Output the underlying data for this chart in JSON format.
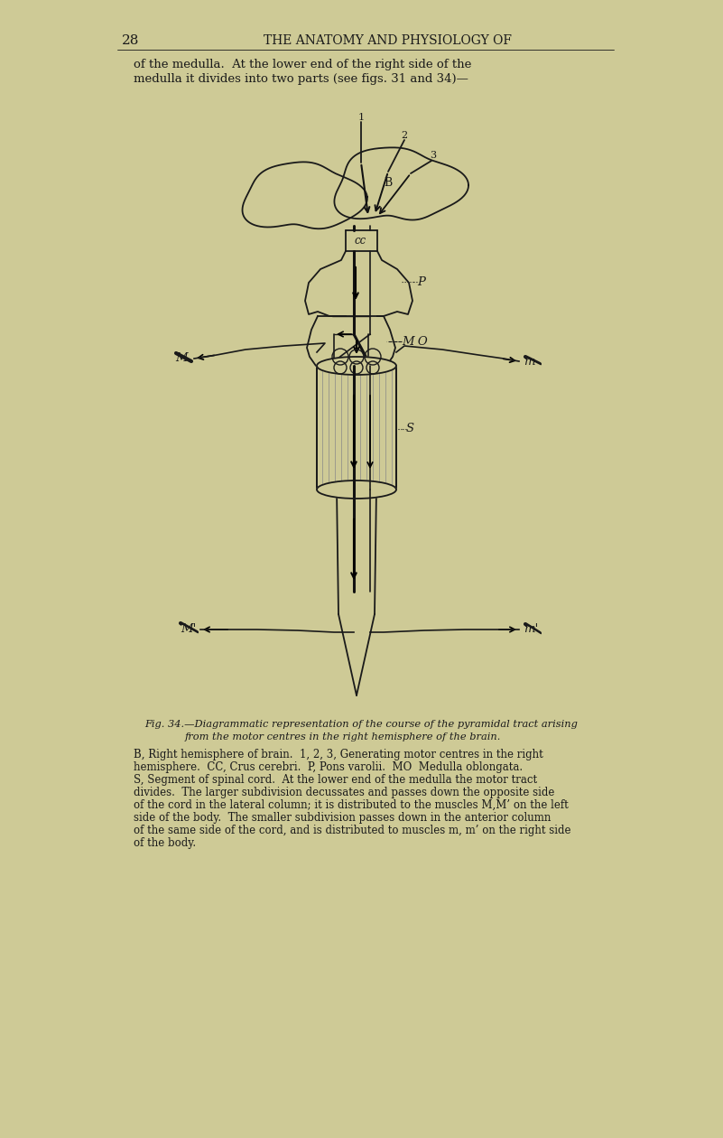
{
  "bg_color": "#ceca96",
  "line_color": "#1a1a1a",
  "dark_line": "#000000",
  "page_number": "28",
  "header_text": "THE ANATOMY AND PHYSIOLOGY OF",
  "body_text_1": "of the medulla.  At the lower end of the right side of the",
  "body_text_2": "medulla it divides into two parts (see figs. 31 and 34)—",
  "fig_caption_1": "Fig. 34.—Diagrammatic representation of the course of the pyramidal tract arising",
  "fig_caption_2": "from the motor centres in the right hemisphere of the brain.",
  "fig_caption_3": "B, Right hemisphere of brain.  1, 2, 3, Generating motor centres in the right",
  "fig_caption_4": "hemisphere.  CC, Crus cerebri.  P, Pons varolii.  MO  Medulla oblongata.",
  "fig_caption_5": "S, Segment of spinal cord.  At the lower end of the medulla the motor tract",
  "fig_caption_6": "divides.  The larger subdivision decussates and passes down the opposite side",
  "fig_caption_7": "of the cord in the lateral column; it is distributed to the muscles M,M’ on the left",
  "fig_caption_8": "side of the body.  The smaller subdivision passes down in the anterior column",
  "fig_caption_9": "of the same side of the cord, and is distributed to muscles m, m’ on the right side",
  "fig_caption_10": "of the body."
}
